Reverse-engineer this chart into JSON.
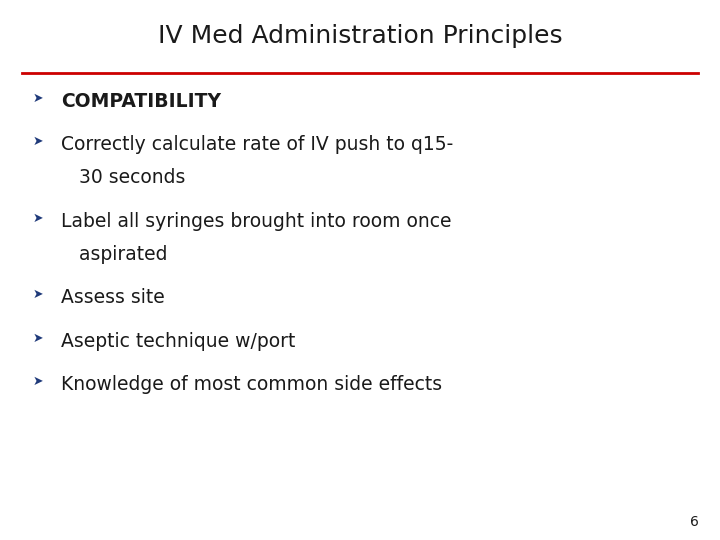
{
  "title": "IV Med Administration Principles",
  "title_fontsize": 18,
  "title_color": "#1a1a1a",
  "line_color": "#cc0000",
  "bullet_color": "#1f3a7a",
  "text_color": "#1a1a1a",
  "bullet_symbol": "➤",
  "background_color": "#ffffff",
  "page_number": "6",
  "bullets": [
    {
      "lines": [
        "COMPATIBILITY"
      ],
      "bold": true
    },
    {
      "lines": [
        "Correctly calculate rate of IV push to q15-",
        "   30 seconds"
      ],
      "bold": false
    },
    {
      "lines": [
        "Label all syringes brought into room once",
        "   aspirated"
      ],
      "bold": false
    },
    {
      "lines": [
        "Assess site"
      ],
      "bold": false
    },
    {
      "lines": [
        "Aseptic technique w/port"
      ],
      "bold": false
    },
    {
      "lines": [
        "Knowledge of most common side effects"
      ],
      "bold": false
    }
  ]
}
